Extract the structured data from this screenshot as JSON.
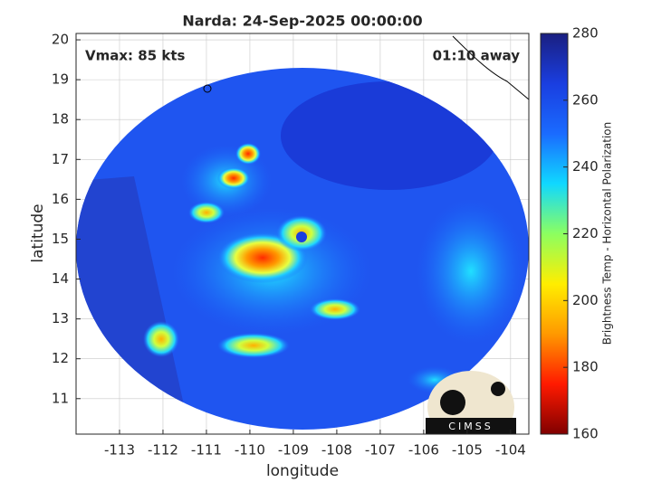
{
  "chart_data": {
    "type": "image",
    "title": "Narda: 24-Sep-2025 00:00:00",
    "annotations": [
      "Vmax: 85 kts",
      "01:10 away"
    ],
    "x_label": "longitude",
    "y_label": "latitude",
    "colorbar_label": "Brightness Temp - Horizontal Polarization",
    "logo": "CIMSS",
    "xlim": [
      -114,
      -103.58
    ],
    "xticks": [
      -113,
      -112,
      -111,
      -110,
      -109,
      -108,
      -107,
      -106,
      -105,
      -104
    ],
    "ylim": [
      10.11,
      20.16
    ],
    "yticks": [
      11,
      12,
      13,
      14,
      15,
      16,
      17,
      18,
      19,
      20
    ],
    "clim": [
      160,
      280
    ],
    "cticks": [
      160,
      180,
      200,
      220,
      240,
      260,
      280
    ],
    "colormap": [
      "#800000",
      "#ff1a00",
      "#ff9900",
      "#ffee00",
      "#8cff60",
      "#10d8ff",
      "#1a6bff",
      "#1a3ee0",
      "#1a1f80"
    ],
    "grid": true
  }
}
